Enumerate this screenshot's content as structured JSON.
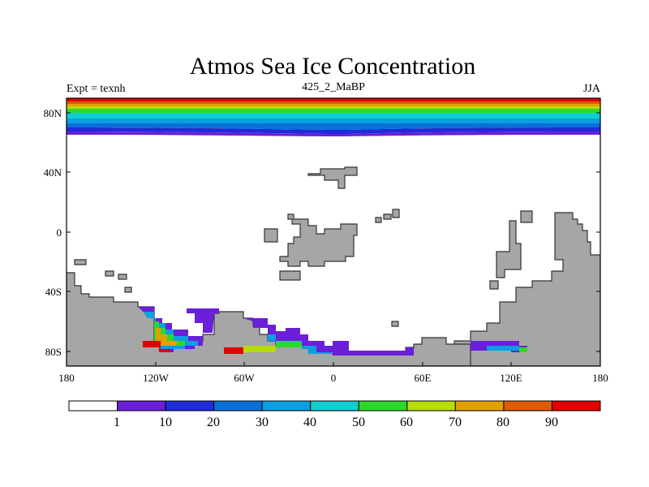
{
  "title": "Atmos Sea Ice Concentration",
  "left_label": "Expt = texnh",
  "center_label": "425_2_MaBP",
  "right_label": "JJA",
  "map": {
    "lon_range": [
      -180,
      180
    ],
    "lat_range": [
      -90,
      90
    ],
    "x_ticks": [
      "180",
      "120W",
      "60W",
      "0",
      "60E",
      "120E",
      "180"
    ],
    "y_ticks": [
      "80N",
      "40N",
      "0",
      "40S",
      "80S"
    ],
    "colors": {
      "land": "#a6a6a6",
      "ocean": "#ffffff",
      "coast": "#333333"
    }
  },
  "colorbar": {
    "labels": [
      "1",
      "10",
      "20",
      "30",
      "40",
      "50",
      "60",
      "70",
      "80",
      "90"
    ],
    "colors": [
      "#ffffff",
      "#6a1fd8",
      "#1f2bd8",
      "#0a6fd8",
      "#0a9fe0",
      "#10cdd0",
      "#2ed82a",
      "#b6dc0a",
      "#e2a000",
      "#e05a05",
      "#e00000"
    ]
  }
}
